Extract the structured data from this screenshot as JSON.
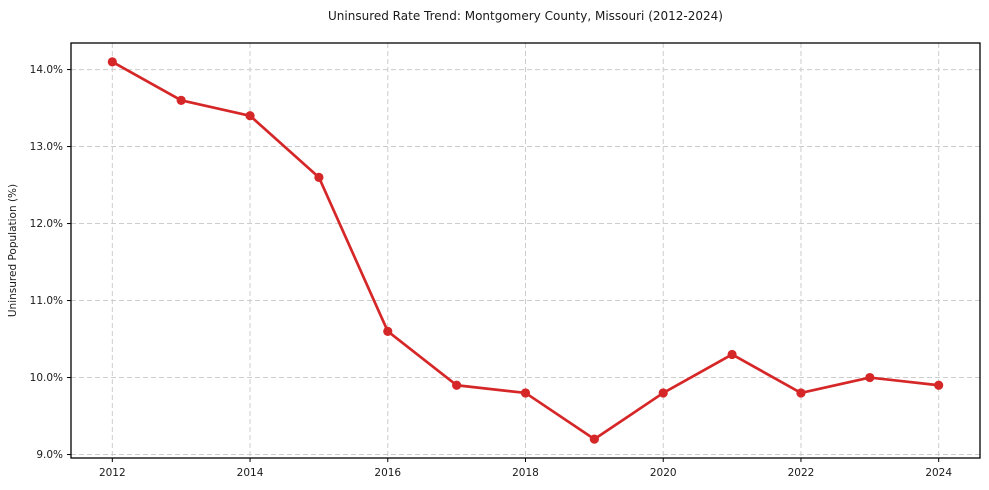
{
  "chart_data": {
    "type": "line",
    "title": "Uninsured Rate Trend: Montgomery County, Missouri (2012-2024)",
    "xlabel": "",
    "ylabel": "Uninsured Population (%)",
    "series_name": "uninsured-rate",
    "x": [
      2012,
      2013,
      2014,
      2015,
      2016,
      2017,
      2018,
      2019,
      2020,
      2021,
      2022,
      2023,
      2024
    ],
    "values": [
      14.1,
      13.6,
      13.4,
      12.6,
      10.6,
      9.9,
      9.8,
      9.2,
      9.8,
      10.3,
      9.8,
      10.0,
      9.9
    ],
    "xlim": [
      2011.4,
      2024.6
    ],
    "ylim": [
      8.955,
      14.345
    ],
    "x_tick_values": [
      2012,
      2014,
      2016,
      2018,
      2020,
      2022,
      2024
    ],
    "x_tick_labels": [
      "2012",
      "2014",
      "2016",
      "2018",
      "2020",
      "2022",
      "2024"
    ],
    "y_tick_values": [
      9,
      10,
      11,
      12,
      13,
      14
    ],
    "y_tick_labels": [
      "9.0%",
      "10.0%",
      "11.0%",
      "12.0%",
      "13.0%",
      "14.0%"
    ],
    "grid": true,
    "grid_style": "dashed",
    "legend": "none",
    "colors": {
      "line": "#d62728",
      "marker": "#d62728",
      "grid": "#cccccc",
      "spine": "#000000",
      "text": "#1a1a1a",
      "background": "#ffffff"
    }
  }
}
